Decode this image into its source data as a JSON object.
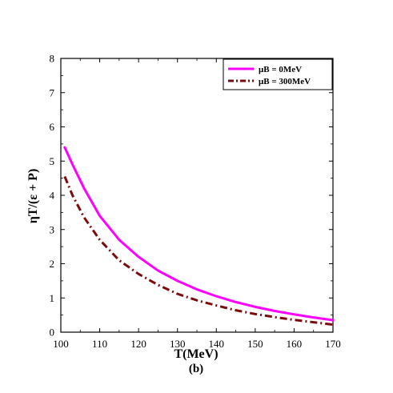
{
  "chart_data": {
    "type": "line",
    "xlabel": "T(MeV)",
    "ylabel": "ηT/(ε + P)",
    "caption": "(b)",
    "xlim": [
      100,
      170
    ],
    "ylim": [
      0,
      8
    ],
    "xticks": [
      100,
      110,
      120,
      130,
      140,
      150,
      160,
      170
    ],
    "yticks": [
      0,
      1,
      2,
      3,
      4,
      5,
      6,
      7,
      8
    ],
    "legend_position": "top-right",
    "grid": false,
    "series": [
      {
        "name": "μB = 0MeV",
        "color": "#ff00ff",
        "style": "solid",
        "x": [
          101,
          103,
          106,
          110,
          115,
          120,
          125,
          130,
          135,
          140,
          145,
          150,
          155,
          160,
          165,
          170
        ],
        "y": [
          5.4,
          4.9,
          4.2,
          3.4,
          2.7,
          2.2,
          1.8,
          1.5,
          1.25,
          1.05,
          0.88,
          0.74,
          0.62,
          0.52,
          0.43,
          0.35
        ]
      },
      {
        "name": "μB = 300MeV",
        "color": "#7a0c0c",
        "style": "dashdot",
        "x": [
          101,
          103,
          106,
          110,
          115,
          120,
          125,
          130,
          135,
          140,
          145,
          150,
          155,
          160,
          165,
          170
        ],
        "y": [
          4.55,
          4.0,
          3.35,
          2.7,
          2.1,
          1.7,
          1.38,
          1.12,
          0.93,
          0.78,
          0.64,
          0.53,
          0.44,
          0.36,
          0.29,
          0.22
        ]
      }
    ]
  }
}
